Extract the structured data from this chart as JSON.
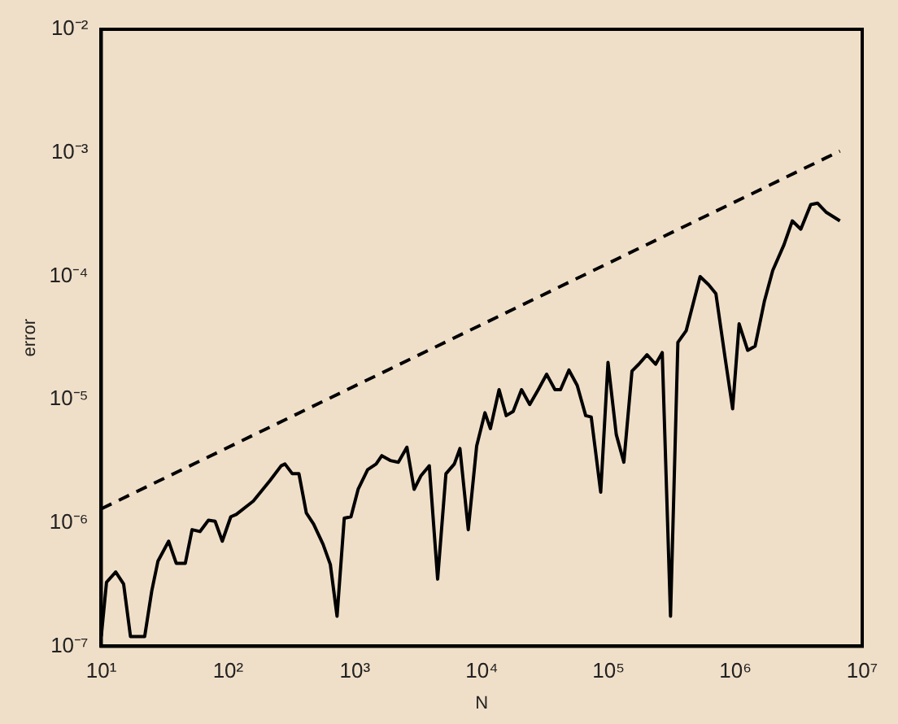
{
  "chart_data": {
    "type": "line",
    "xlabel": "N",
    "ylabel": "error",
    "log": "xy",
    "xlim": [
      10,
      10000000
    ],
    "ylim": [
      1e-07,
      0.01
    ],
    "xticks": [
      {
        "value": 10,
        "label": "10¹"
      },
      {
        "value": 100,
        "label": "10²"
      },
      {
        "value": 1000,
        "label": "10³"
      },
      {
        "value": 10000,
        "label": "10⁴"
      },
      {
        "value": 100000,
        "label": "10⁵"
      },
      {
        "value": 1000000,
        "label": "10⁶"
      },
      {
        "value": 10000000,
        "label": "10⁷"
      }
    ],
    "yticks": [
      {
        "value": 1e-07,
        "label": "10⁻⁷"
      },
      {
        "value": 1e-06,
        "label": "10⁻⁶"
      },
      {
        "value": 1e-05,
        "label": "10⁻⁵"
      },
      {
        "value": 0.0001,
        "label": "10⁻⁴"
      },
      {
        "value": 0.001,
        "label": "10⁻³"
      },
      {
        "value": 0.01,
        "label": "10⁻²"
      }
    ],
    "grid": false,
    "legend": false,
    "marker": "none",
    "series": [
      {
        "color": "#000000",
        "line_style": "solid",
        "x": [
          10,
          11,
          13,
          15,
          17,
          22,
          25,
          28,
          34,
          39,
          46,
          52,
          60,
          70,
          79,
          90,
          105,
          116,
          158,
          214,
          262,
          281,
          321,
          362,
          414,
          472,
          561,
          640,
          723,
          824,
          931,
          1060,
          1260,
          1470,
          1630,
          1900,
          2200,
          2570,
          2930,
          3310,
          3860,
          4490,
          5220,
          6080,
          6730,
          7830,
          9120,
          10600,
          11700,
          13700,
          15600,
          17700,
          20600,
          23900,
          27900,
          32500,
          37800,
          41800,
          48700,
          56600,
          66000,
          73000,
          86700,
          99000,
          115000,
          132000,
          153000,
          173000,
          201000,
          235000,
          265000,
          308000,
          352000,
          409000,
          527000,
          615000,
          702000,
          834000,
          951000,
          1070000,
          1250000,
          1430000,
          1690000,
          1970000,
          2420000,
          2810000,
          3280000,
          3930000,
          4440000,
          5180000,
          6670000
        ],
        "values": [
          1.2e-07,
          3.3e-07,
          4e-07,
          3.2e-07,
          1.2e-07,
          1.2e-07,
          2.8e-07,
          4.9e-07,
          7.1e-07,
          4.7e-07,
          4.7e-07,
          8.8e-07,
          8.5e-07,
          1.05e-06,
          1.03e-06,
          7.1e-07,
          1.12e-06,
          1.17e-06,
          1.5e-06,
          2.2e-06,
          2.9e-06,
          3e-06,
          2.5e-06,
          2.5e-06,
          1.2e-06,
          9.8e-07,
          6.7e-07,
          4.6e-07,
          1.75e-07,
          1.09e-06,
          1.12e-06,
          1.87e-06,
          2.7e-06,
          3e-06,
          3.5e-06,
          3.2e-06,
          3.1e-06,
          4.1e-06,
          1.87e-06,
          2.4e-06,
          2.9e-06,
          3.5e-07,
          2.5e-06,
          3e-06,
          4e-06,
          8.8e-07,
          4.2e-06,
          7.8e-06,
          5.8e-06,
          1.2e-05,
          7.4e-06,
          8e-06,
          1.2e-05,
          9.1e-06,
          1.2e-05,
          1.6e-05,
          1.2e-05,
          1.2e-05,
          1.73e-05,
          1.3e-05,
          7.4e-06,
          7.2e-06,
          1.77e-06,
          2e-05,
          5.2e-06,
          3.1e-06,
          1.7e-05,
          1.93e-05,
          2.3e-05,
          1.93e-05,
          2.4e-05,
          1.75e-07,
          2.9e-05,
          3.6e-05,
          9.9e-05,
          8.5e-05,
          7.2e-05,
          2.1e-05,
          8.4e-06,
          4.1e-05,
          2.5e-05,
          2.7e-05,
          6.2e-05,
          0.000111,
          0.00018,
          0.00028,
          0.00024,
          0.00038,
          0.00039,
          0.00033,
          0.00028
        ]
      },
      {
        "color": "#000000",
        "line_style": "dashed",
        "x": [
          10,
          6670000
        ],
        "values": [
          1.3e-06,
          0.00103
        ]
      }
    ]
  }
}
